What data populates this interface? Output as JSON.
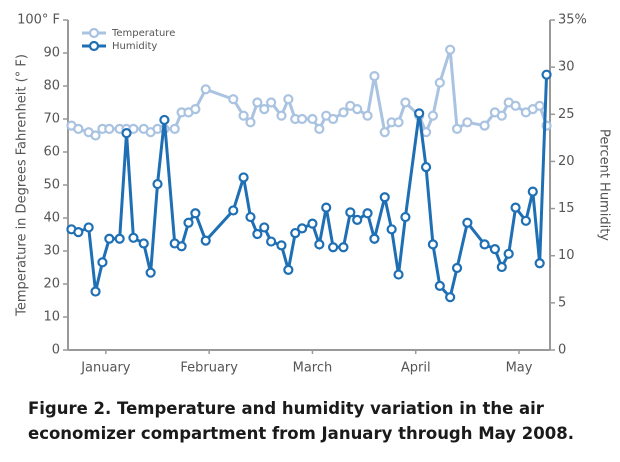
{
  "chart_data": {
    "type": "line",
    "caption": [
      "Figure 2. Temperature and humidity variation in the air",
      "economizer compartment from January through May 2008."
    ],
    "y_label": "Temperature in Degrees Fahrenheit (° F)",
    "y2_label": "Percent Humidity",
    "x": [
      6,
      8,
      11,
      13,
      15,
      17,
      20,
      22,
      24,
      27,
      29,
      31,
      33,
      36,
      38,
      40,
      42,
      45,
      53,
      56,
      58,
      60,
      62,
      64,
      67,
      69,
      71,
      73,
      76,
      78,
      80,
      82,
      85,
      87,
      89,
      92,
      94,
      97,
      99,
      101,
      103,
      107,
      109,
      111,
      113,
      116,
      118,
      121,
      126,
      129,
      131,
      133,
      135,
      138,
      140,
      142,
      144
    ],
    "xlim": [
      5,
      145
    ],
    "xticks": [
      {
        "value": 16,
        "label": "January"
      },
      {
        "value": 46,
        "label": "February"
      },
      {
        "value": 76,
        "label": "March"
      },
      {
        "value": 106,
        "label": "April"
      },
      {
        "value": 136,
        "label": "May"
      }
    ],
    "ylim": [
      0,
      100
    ],
    "yticks": [
      0,
      10,
      20,
      30,
      40,
      50,
      60,
      70,
      80,
      90,
      {
        "value": 100,
        "label": "100° F"
      }
    ],
    "y2lim": [
      0,
      35
    ],
    "y2ticks": [
      0,
      5,
      10,
      15,
      20,
      25,
      30,
      {
        "value": 35,
        "label": "35%"
      }
    ],
    "legend": "upper left",
    "series": [
      {
        "name": "Temperature",
        "color": "#a9c3e0",
        "values": [
          68,
          67,
          66,
          65,
          67,
          67,
          67,
          67,
          67,
          67,
          66,
          67,
          67,
          67,
          72,
          72,
          73,
          79,
          76,
          71,
          69,
          75,
          73,
          75,
          71,
          76,
          70,
          70,
          70,
          67,
          71,
          70,
          72,
          74,
          73,
          71,
          83,
          66,
          69,
          69,
          75,
          71,
          66,
          71,
          81,
          91,
          67,
          69,
          68,
          72,
          71,
          75,
          74,
          72,
          73,
          74,
          68
        ]
      },
      {
        "name": "Humidity",
        "color": "#1f6fb5",
        "axis": "y2",
        "values": [
          12.8,
          12.5,
          13.0,
          6.2,
          9.3,
          11.8,
          11.8,
          23.0,
          11.9,
          11.3,
          8.2,
          17.6,
          24.4,
          11.3,
          11.0,
          13.5,
          14.5,
          11.6,
          14.8,
          18.3,
          14.1,
          12.3,
          13.0,
          11.5,
          11.1,
          8.5,
          12.4,
          12.9,
          13.4,
          11.2,
          15.1,
          10.9,
          10.9,
          14.6,
          13.8,
          14.5,
          11.8,
          16.2,
          12.8,
          8.0,
          14.1,
          25.1,
          19.4,
          11.2,
          6.8,
          5.6,
          8.7,
          13.5,
          11.2,
          10.7,
          8.8,
          10.2,
          15.1,
          13.7,
          16.8,
          9.2,
          29.2
        ]
      }
    ]
  }
}
